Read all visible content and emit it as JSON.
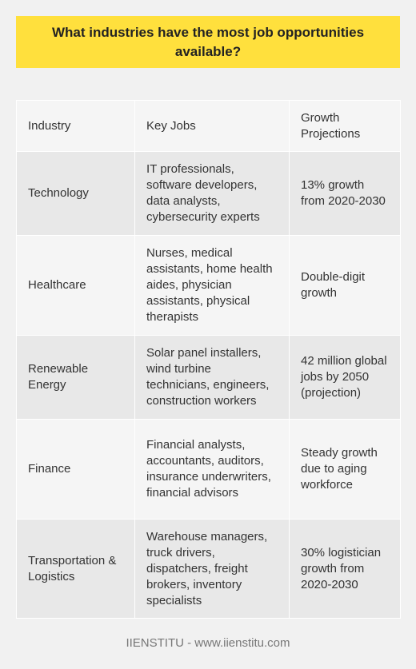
{
  "title": "What industries have the most job opportunities available?",
  "table": {
    "headers": [
      "Industry",
      "Key Jobs",
      "Growth Projections"
    ],
    "rows": [
      [
        "Technology",
        "IT professionals, software developers, data analysts, cybersecurity experts",
        "13% growth from 2020-2030"
      ],
      [
        "Healthcare",
        "Nurses, medical assistants, home health aides, physician assistants, physical therapists",
        "Double-digit growth"
      ],
      [
        "Renewable Energy",
        "Solar panel installers, wind turbine technicians, engineers, construction workers",
        "42 million global jobs by 2050 (projection)"
      ],
      [
        "Finance",
        "Financial analysts, accountants, auditors, insurance underwriters, financial advisors",
        "Steady growth due to aging workforce"
      ],
      [
        "Transportation & Logistics",
        "Warehouse managers, truck drivers, dispatchers, freight brokers, inventory specialists",
        "30% logistician growth from 2020-2030"
      ]
    ]
  },
  "footer": "IIENSTITU - www.iienstitu.com",
  "colors": {
    "banner": "#ffe03d",
    "background": "#f1f1f1",
    "row_dark": "#e8e8e8",
    "row_light": "#f5f5f5"
  }
}
